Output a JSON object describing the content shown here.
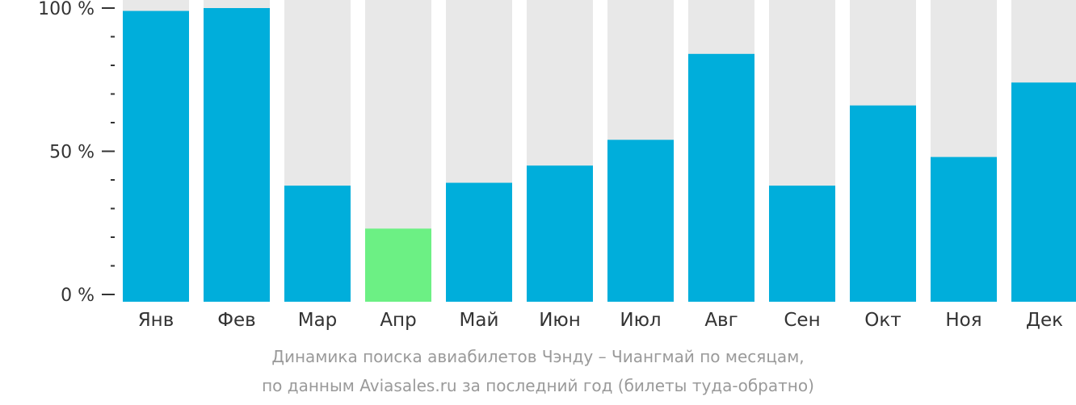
{
  "chart_data": {
    "type": "bar",
    "categories": [
      "Янв",
      "Фев",
      "Мар",
      "Апр",
      "Май",
      "Июн",
      "Июл",
      "Авг",
      "Сен",
      "Окт",
      "Ноя",
      "Дек"
    ],
    "values": [
      99,
      100,
      38,
      23,
      39,
      45,
      54,
      84,
      38,
      66,
      48,
      74
    ],
    "highlight_index": 3,
    "ylim": [
      0,
      100
    ],
    "y_ticks": [
      {
        "value": 0,
        "label": "0 %"
      },
      {
        "value": 50,
        "label": "50 %"
      },
      {
        "value": 100,
        "label": "100 %"
      }
    ],
    "minor_tick_step": 10,
    "colors": {
      "bar": "#00AEDB",
      "highlight": "#6CF084",
      "background_bar": "#E8E8E8",
      "axis": "#333333"
    }
  },
  "caption": {
    "line1": "Динамика поиска авиабилетов Чэнду – Чиангмай по месяцам,",
    "line2": "по данным Aviasales.ru за последний год (билеты туда-обратно)"
  }
}
